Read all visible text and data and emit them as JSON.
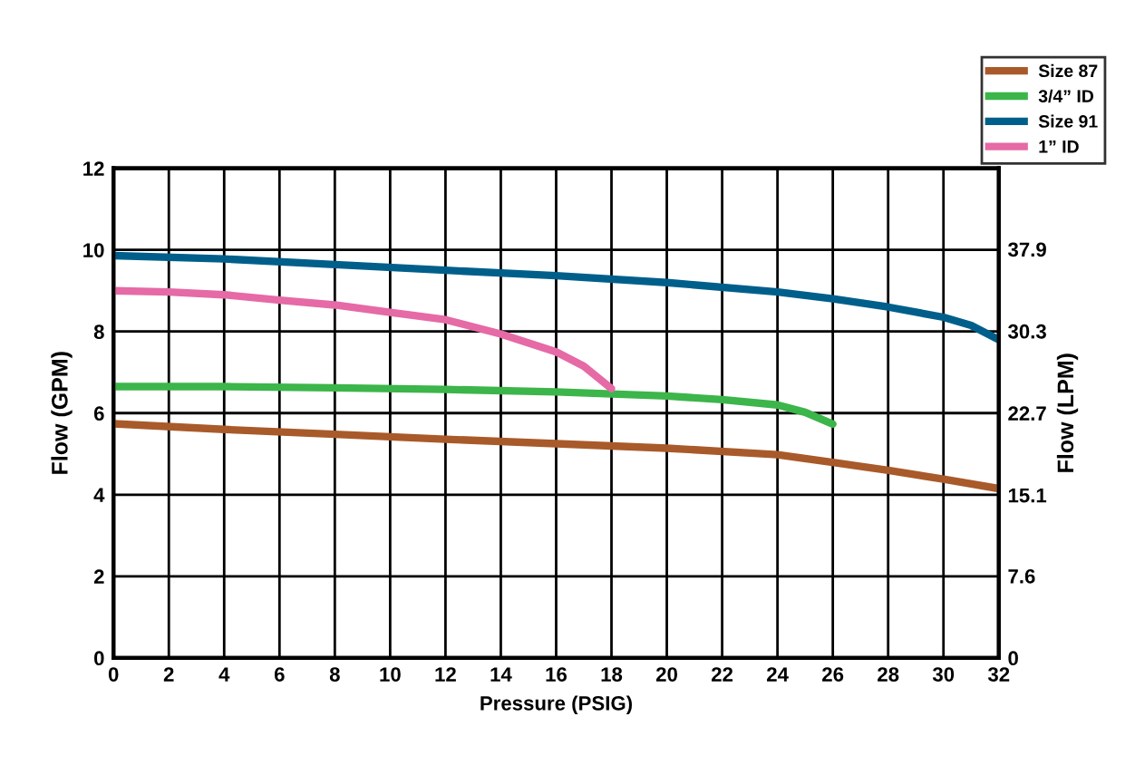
{
  "chart_data": {
    "type": "line",
    "xlabel": "Pressure (PSIG)",
    "ylabel": "Flow (GPM)",
    "y2label": "Flow (LPM)",
    "xlim": [
      0,
      32
    ],
    "xticks": [
      0,
      2,
      4,
      6,
      8,
      10,
      12,
      14,
      16,
      18,
      20,
      22,
      24,
      26,
      28,
      30,
      32
    ],
    "ylim": [
      0,
      12
    ],
    "yticks": [
      0,
      2,
      4,
      6,
      8,
      10,
      12
    ],
    "y2lim": [
      0,
      45.4
    ],
    "y2ticks": [
      0,
      7.6,
      15.1,
      22.7,
      30.3,
      37.9
    ],
    "grid": true,
    "legend": "top right",
    "marker": "none",
    "line_style": "solid",
    "series": [
      {
        "name": "Size 87",
        "color": "#a95a2a",
        "x": [
          0,
          4,
          8,
          12,
          16,
          20,
          24,
          26,
          28,
          30,
          32
        ],
        "values": [
          5.74,
          5.6,
          5.48,
          5.36,
          5.25,
          5.14,
          4.98,
          4.79,
          4.6,
          4.38,
          4.15
        ]
      },
      {
        "name": "3/4” ID",
        "color": "#3cb54a",
        "x": [
          0,
          4,
          8,
          12,
          16,
          20,
          22,
          24,
          25,
          26
        ],
        "values": [
          6.65,
          6.65,
          6.62,
          6.58,
          6.52,
          6.42,
          6.33,
          6.2,
          6.02,
          5.73
        ]
      },
      {
        "name": "Size 91",
        "color": "#005f8a",
        "x": [
          0,
          4,
          8,
          12,
          16,
          20,
          24,
          26,
          28,
          30,
          31,
          32
        ],
        "values": [
          9.86,
          9.78,
          9.64,
          9.5,
          9.37,
          9.2,
          8.97,
          8.8,
          8.6,
          8.35,
          8.15,
          7.8
        ]
      },
      {
        "name": "1” ID",
        "color": "#e56aa6",
        "x": [
          0,
          2,
          4,
          6,
          8,
          10,
          12,
          14,
          16,
          17,
          18
        ],
        "values": [
          9.0,
          8.97,
          8.9,
          8.77,
          8.65,
          8.47,
          8.29,
          7.94,
          7.5,
          7.15,
          6.6
        ]
      }
    ]
  }
}
